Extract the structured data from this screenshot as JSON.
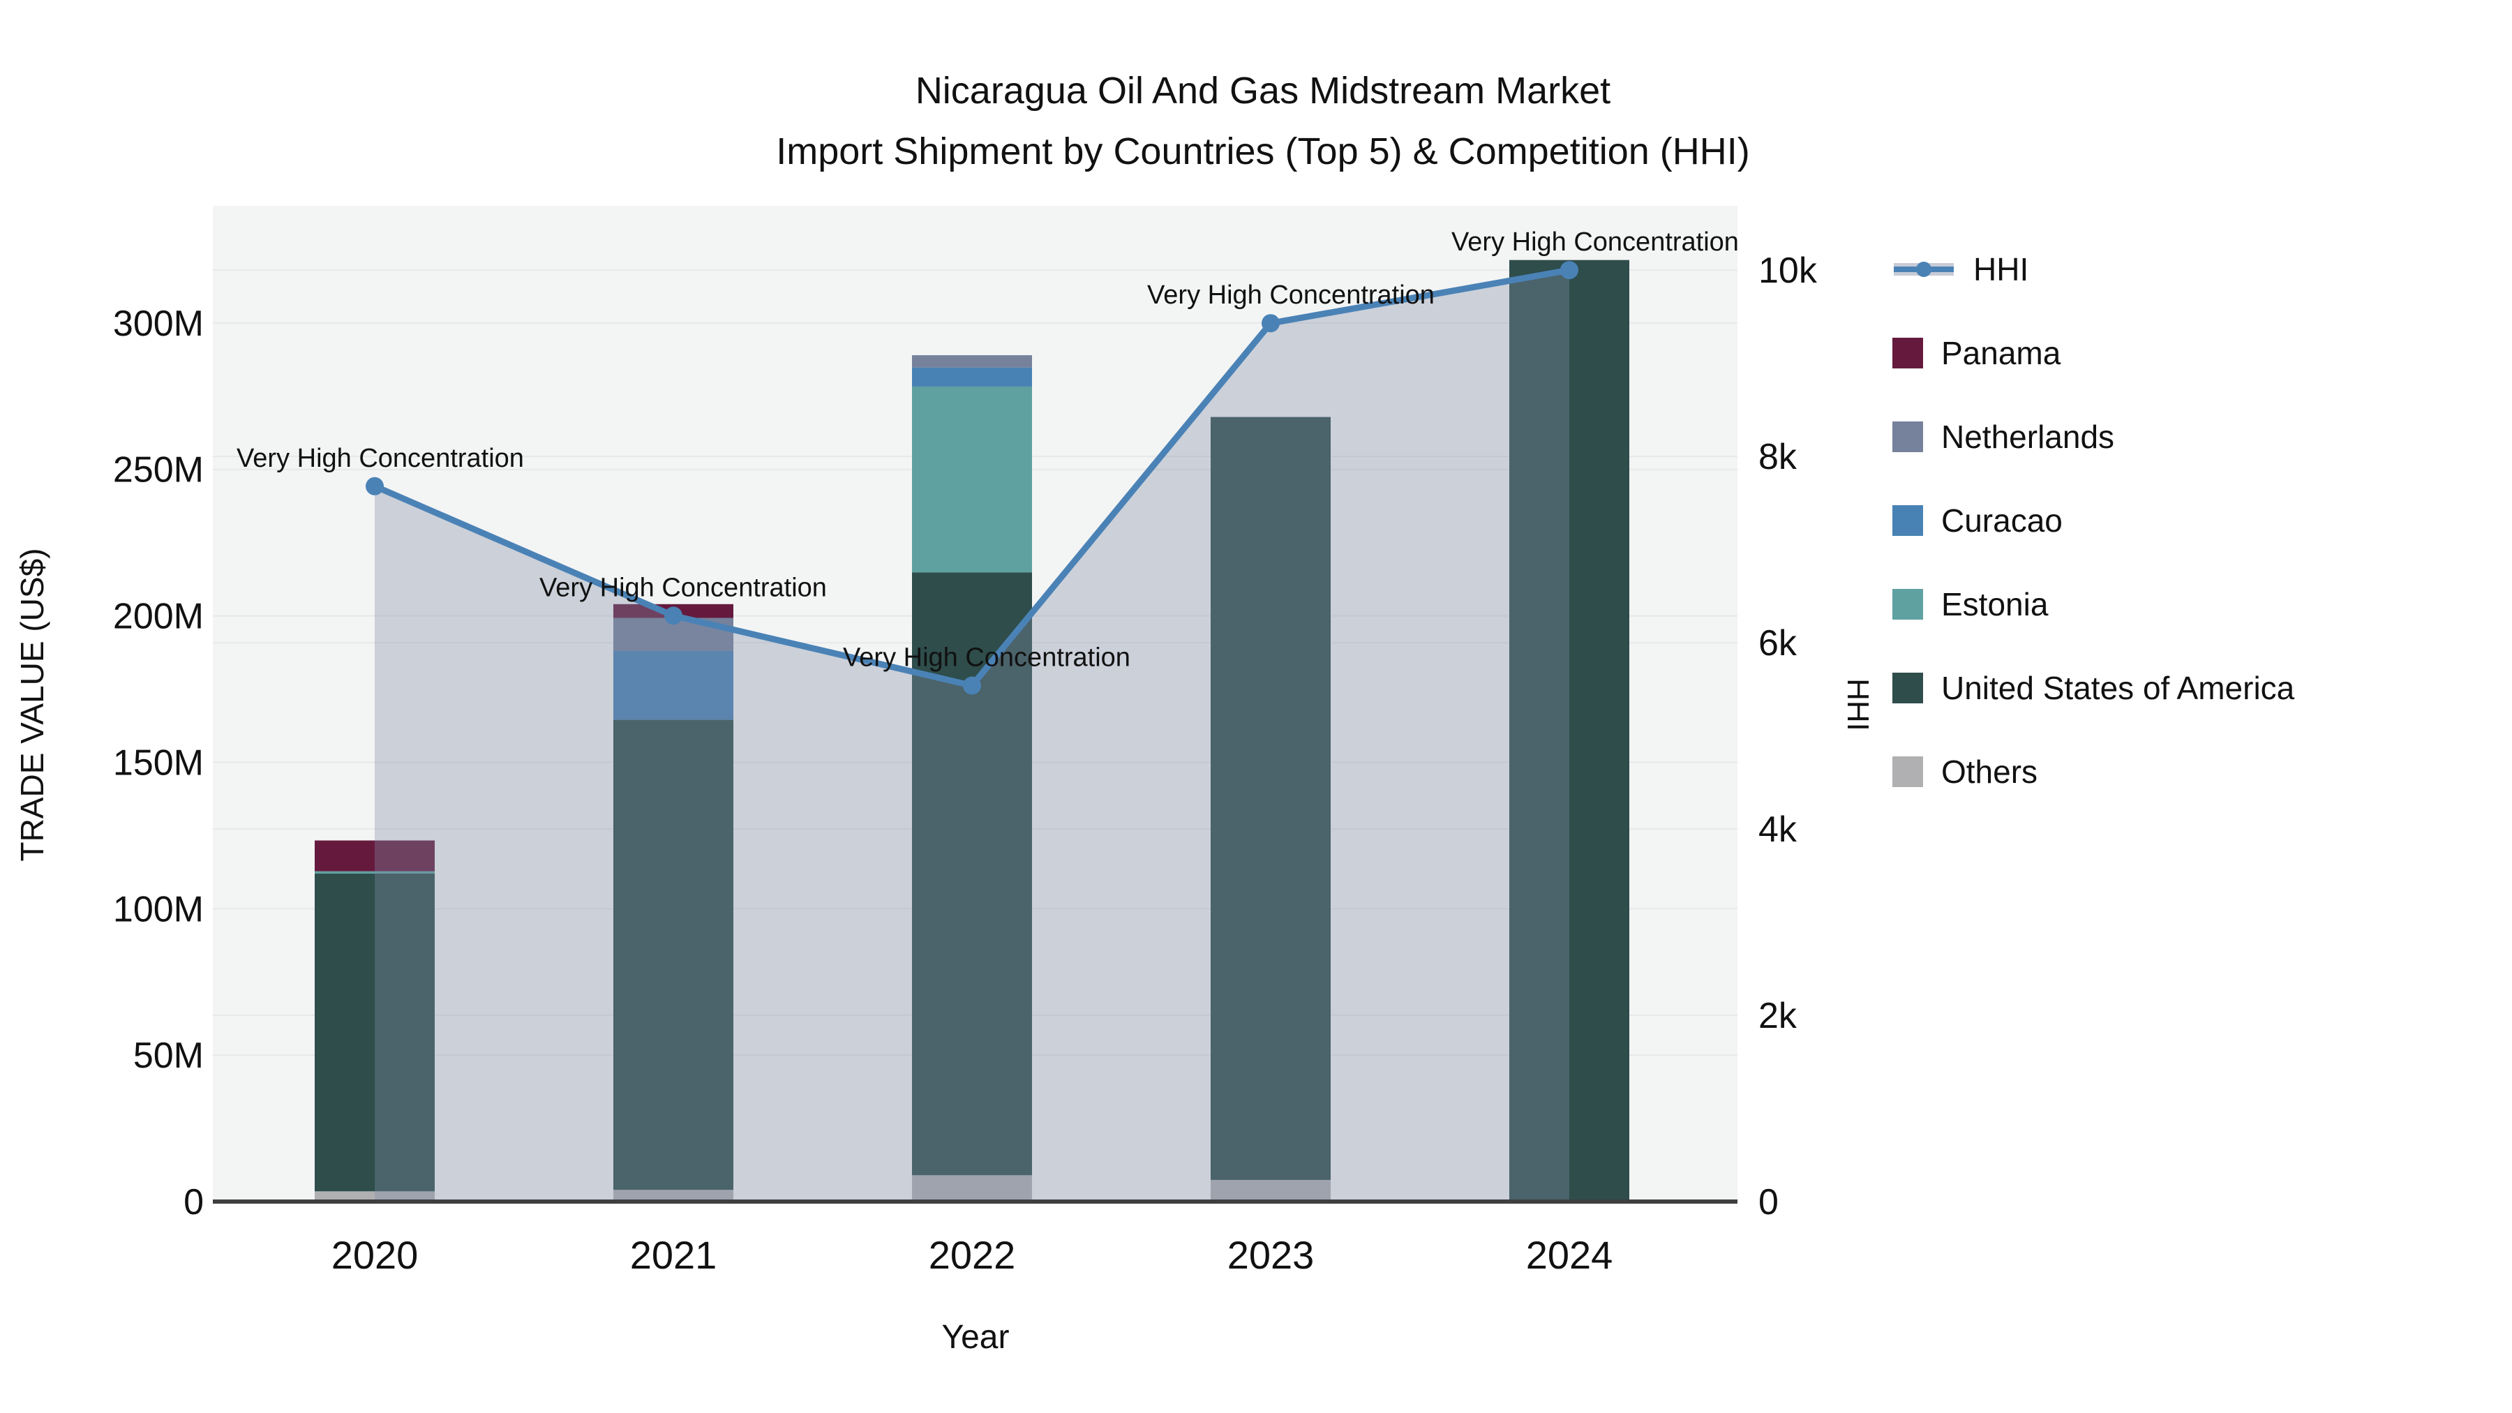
{
  "title": {
    "line1": "Nicaragua Oil And Gas Midstream Market",
    "line2": "Import Shipment by Countries (Top 5) & Competition (HHI)"
  },
  "axes": {
    "y1_title": "TRADE VALUE (US$)",
    "y2_title": "HHI",
    "x_title": "Year"
  },
  "legend": {
    "items": [
      {
        "label": "HHI",
        "type": "line",
        "color": "#4A82B6",
        "band_color": "rgba(130,140,165,0.45)"
      },
      {
        "label": "Panama",
        "type": "bar",
        "color": "#651A3D"
      },
      {
        "label": "Netherlands",
        "type": "bar",
        "color": "#76819B"
      },
      {
        "label": "Curacao",
        "type": "bar",
        "color": "#4882B4"
      },
      {
        "label": "Estonia",
        "type": "bar",
        "color": "#5FA0A0"
      },
      {
        "label": "United States of America",
        "type": "bar",
        "color": "#2E4D4B"
      },
      {
        "label": "Others",
        "type": "bar",
        "color": "#B0B0B2"
      }
    ]
  },
  "chart_data": {
    "type": "bar+line",
    "title": "Nicaragua Oil And Gas Midstream Market",
    "subtitle": "Import Shipment by Countries (Top 5) & Competition (HHI)",
    "categories": [
      "2020",
      "2021",
      "2022",
      "2023",
      "2024"
    ],
    "bar_value_unit": "million US$",
    "stack_order_note": "series listed bottom-to-top of stack",
    "stack_series": [
      {
        "name": "Others",
        "color": "#B0B0B2",
        "values": [
          3.5,
          4.0,
          9.0,
          7.4,
          0
        ]
      },
      {
        "name": "United States of America",
        "color": "#2E4D4B",
        "values": [
          108.5,
          160.5,
          205.8,
          260.5,
          321.5
        ]
      },
      {
        "name": "Estonia",
        "color": "#5FA0A0",
        "values": [
          0.8,
          0,
          63.5,
          0,
          0
        ]
      },
      {
        "name": "Curacao",
        "color": "#4882B4",
        "values": [
          0,
          23.5,
          6.5,
          0,
          0
        ]
      },
      {
        "name": "Netherlands",
        "color": "#76819B",
        "values": [
          0,
          11.3,
          4.2,
          0,
          0
        ]
      },
      {
        "name": "Panama",
        "color": "#651A3D",
        "values": [
          10.5,
          4.7,
          0,
          0,
          0
        ]
      }
    ],
    "bar_totals_musd": [
      123.3,
      204.0,
      289.0,
      267.9,
      321.5
    ],
    "line_series": {
      "name": "HHI",
      "axis": "y2",
      "color": "#4A82B6",
      "fill_color": "rgba(130,140,165,0.35)",
      "values": [
        7680,
        6290,
        5540,
        9430,
        10000
      ]
    },
    "annotations": [
      {
        "category": "2020",
        "text": "Very High Concentration"
      },
      {
        "category": "2021",
        "text": "Very High Concentration"
      },
      {
        "category": "2022",
        "text": "Very High Concentration"
      },
      {
        "category": "2023",
        "text": "Very High Concentration"
      },
      {
        "category": "2024",
        "text": "Very High Concentration"
      }
    ],
    "y1": {
      "label": "TRADE VALUE (US$)",
      "ticks": [
        {
          "v": 0,
          "label": "0"
        },
        {
          "v": 50,
          "label": "50M"
        },
        {
          "v": 100,
          "label": "100M"
        },
        {
          "v": 150,
          "label": "150M"
        },
        {
          "v": 200,
          "label": "200M"
        },
        {
          "v": 250,
          "label": "250M"
        },
        {
          "v": 300,
          "label": "300M"
        }
      ],
      "range": [
        0,
        340
      ]
    },
    "y2": {
      "label": "HHI",
      "ticks": [
        {
          "v": 0,
          "label": "0"
        },
        {
          "v": 2000,
          "label": "2k"
        },
        {
          "v": 4000,
          "label": "4k"
        },
        {
          "v": 6000,
          "label": "6k"
        },
        {
          "v": 8000,
          "label": "8k"
        },
        {
          "v": 10000,
          "label": "10k"
        }
      ],
      "range": [
        0,
        10690
      ]
    },
    "x": {
      "label": "Year"
    },
    "grid": true,
    "legend_position": "right",
    "plot_bg": "#F3F4F4",
    "grid_color": "#E7E8EA",
    "axisline_color": "#3F3F3F"
  }
}
